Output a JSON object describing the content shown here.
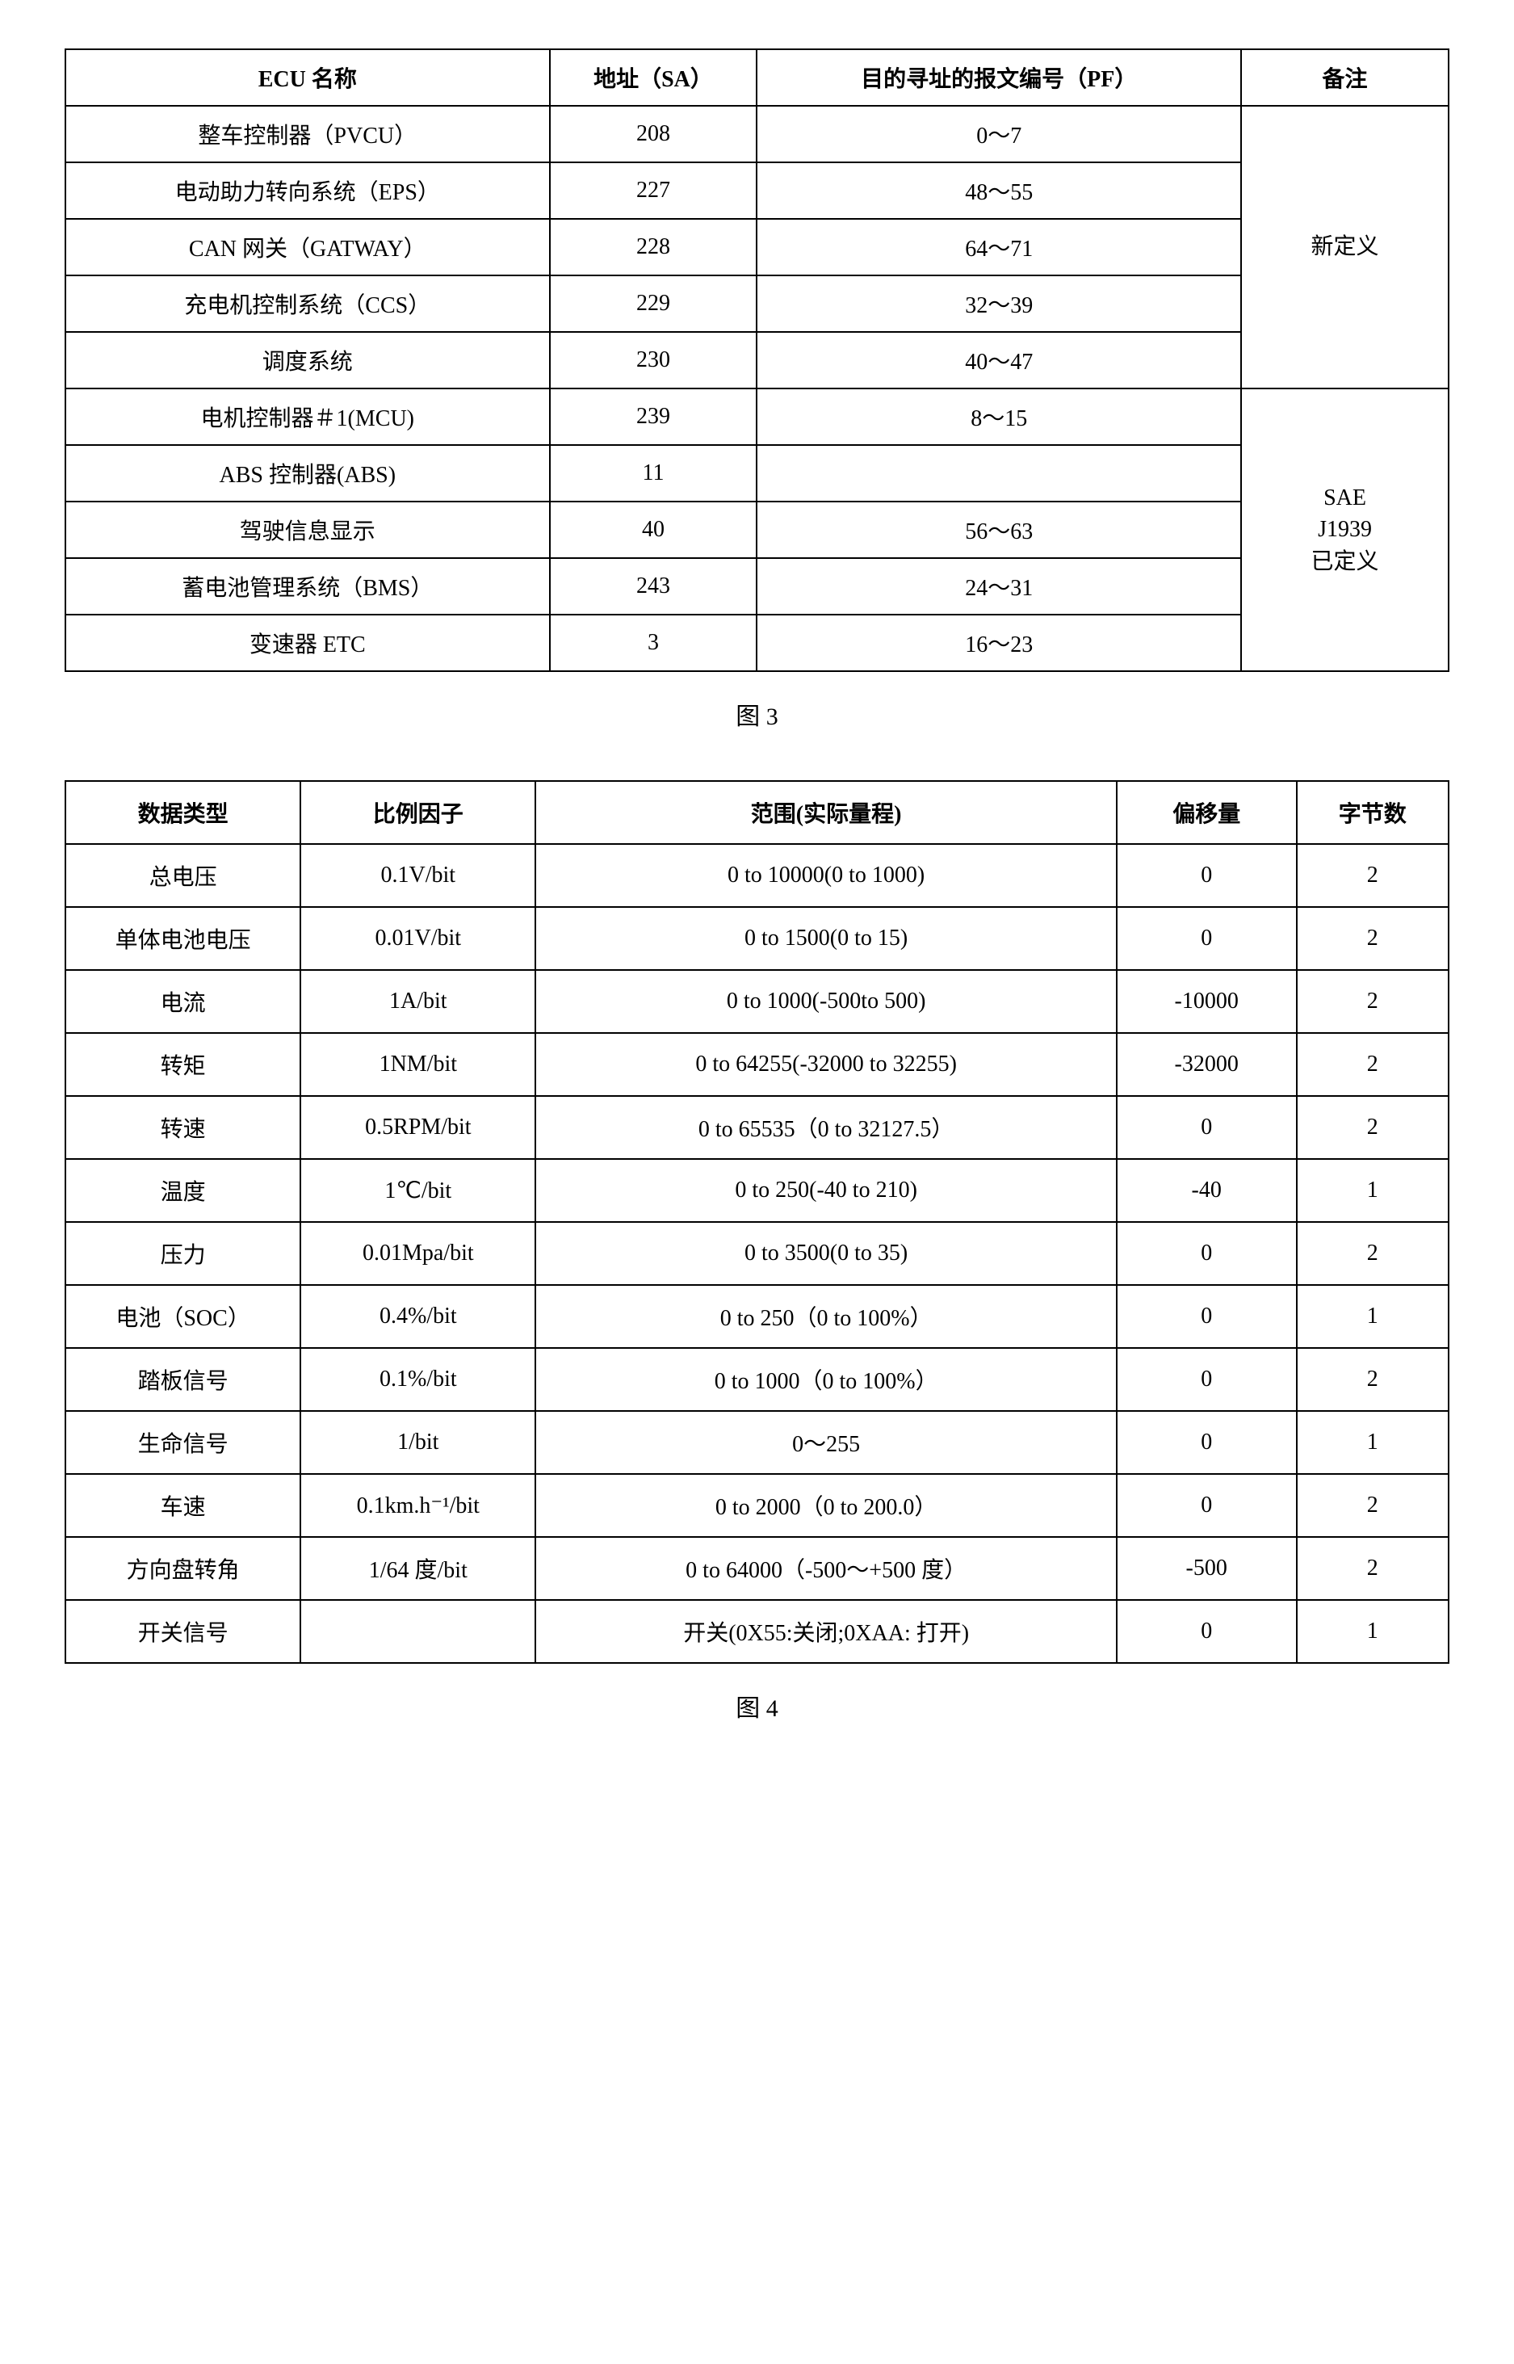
{
  "table1": {
    "columns": [
      "ECU 名称",
      "地址（SA）",
      "目的寻址的报文编号（PF）",
      "备注"
    ],
    "groups": [
      {
        "note": "新定义",
        "rows": [
          {
            "name": "整车控制器（PVCU）",
            "addr": "208",
            "pf": "0～7"
          },
          {
            "name": "电动助力转向系统（EPS）",
            "addr": "227",
            "pf": "48～55"
          },
          {
            "name": "CAN 网关（GATWAY）",
            "addr": "228",
            "pf": "64～71"
          },
          {
            "name": "充电机控制系统（CCS）",
            "addr": "229",
            "pf": "32～39"
          },
          {
            "name": "调度系统",
            "addr": "230",
            "pf": "40～47"
          }
        ]
      },
      {
        "note": "SAE J1939 已定义",
        "rows": [
          {
            "name": "电机控制器＃1(MCU)",
            "addr": "239",
            "pf": "8～15"
          },
          {
            "name": "ABS 控制器(ABS)",
            "addr": "11",
            "pf": ""
          },
          {
            "name": "驾驶信息显示",
            "addr": "40",
            "pf": "56～63"
          },
          {
            "name": "蓄电池管理系统（BMS）",
            "addr": "243",
            "pf": "24～31"
          },
          {
            "name": "变速器 ETC",
            "addr": "3",
            "pf": "16～23"
          }
        ]
      }
    ],
    "caption": "图 3"
  },
  "table2": {
    "columns": [
      "数据类型",
      "比例因子",
      "范围(实际量程)",
      "偏移量",
      "字节数"
    ],
    "rows": [
      {
        "type": "总电压",
        "factor": "0.1V/bit",
        "range": "0 to 10000(0 to 1000)",
        "offset": "0",
        "bytes": "2"
      },
      {
        "type": "单体电池电压",
        "factor": "0.01V/bit",
        "range": "0 to 1500(0 to 15)",
        "offset": "0",
        "bytes": "2"
      },
      {
        "type": "电流",
        "factor": "1A/bit",
        "range": "0 to 1000(-500to 500)",
        "offset": "-10000",
        "bytes": "2"
      },
      {
        "type": "转矩",
        "factor": "1NM/bit",
        "range": "0 to 64255(-32000 to 32255)",
        "offset": "-32000",
        "bytes": "2"
      },
      {
        "type": "转速",
        "factor": "0.5RPM/bit",
        "range": "0 to 65535（0 to 32127.5）",
        "offset": "0",
        "bytes": "2"
      },
      {
        "type": "温度",
        "factor": "1℃/bit",
        "range": "0 to 250(-40 to 210)",
        "offset": "-40",
        "bytes": "1"
      },
      {
        "type": "压力",
        "factor": "0.01Mpa/bit",
        "range": "0 to 3500(0 to 35)",
        "offset": "0",
        "bytes": "2"
      },
      {
        "type": "电池（SOC）",
        "factor": "0.4%/bit",
        "range": "0 to 250（0 to 100%）",
        "offset": "0",
        "bytes": "1"
      },
      {
        "type": "踏板信号",
        "factor": "0.1%/bit",
        "range": "0 to 1000（0 to 100%）",
        "offset": "0",
        "bytes": "2"
      },
      {
        "type": "生命信号",
        "factor": "1/bit",
        "range": "0～255",
        "offset": "0",
        "bytes": "1"
      },
      {
        "type": "车速",
        "factor": "0.1km.h⁻¹/bit",
        "range": "0 to 2000（0 to 200.0）",
        "offset": "0",
        "bytes": "2"
      },
      {
        "type": "方向盘转角",
        "factor": "1/64 度/bit",
        "range": "0 to 64000（-500～+500 度）",
        "offset": "-500",
        "bytes": "2"
      },
      {
        "type": "开关信号",
        "factor": "",
        "range": "开关(0X55:关闭;0XAA: 打开)",
        "offset": "0",
        "bytes": "1"
      }
    ],
    "caption": "图 4"
  },
  "style": {
    "border_color": "#000000",
    "background_color": "#ffffff",
    "text_color": "#000000",
    "header_fontsize": 28,
    "cell_fontsize": 28,
    "caption_fontsize": 30,
    "font_family": "SimSun"
  }
}
